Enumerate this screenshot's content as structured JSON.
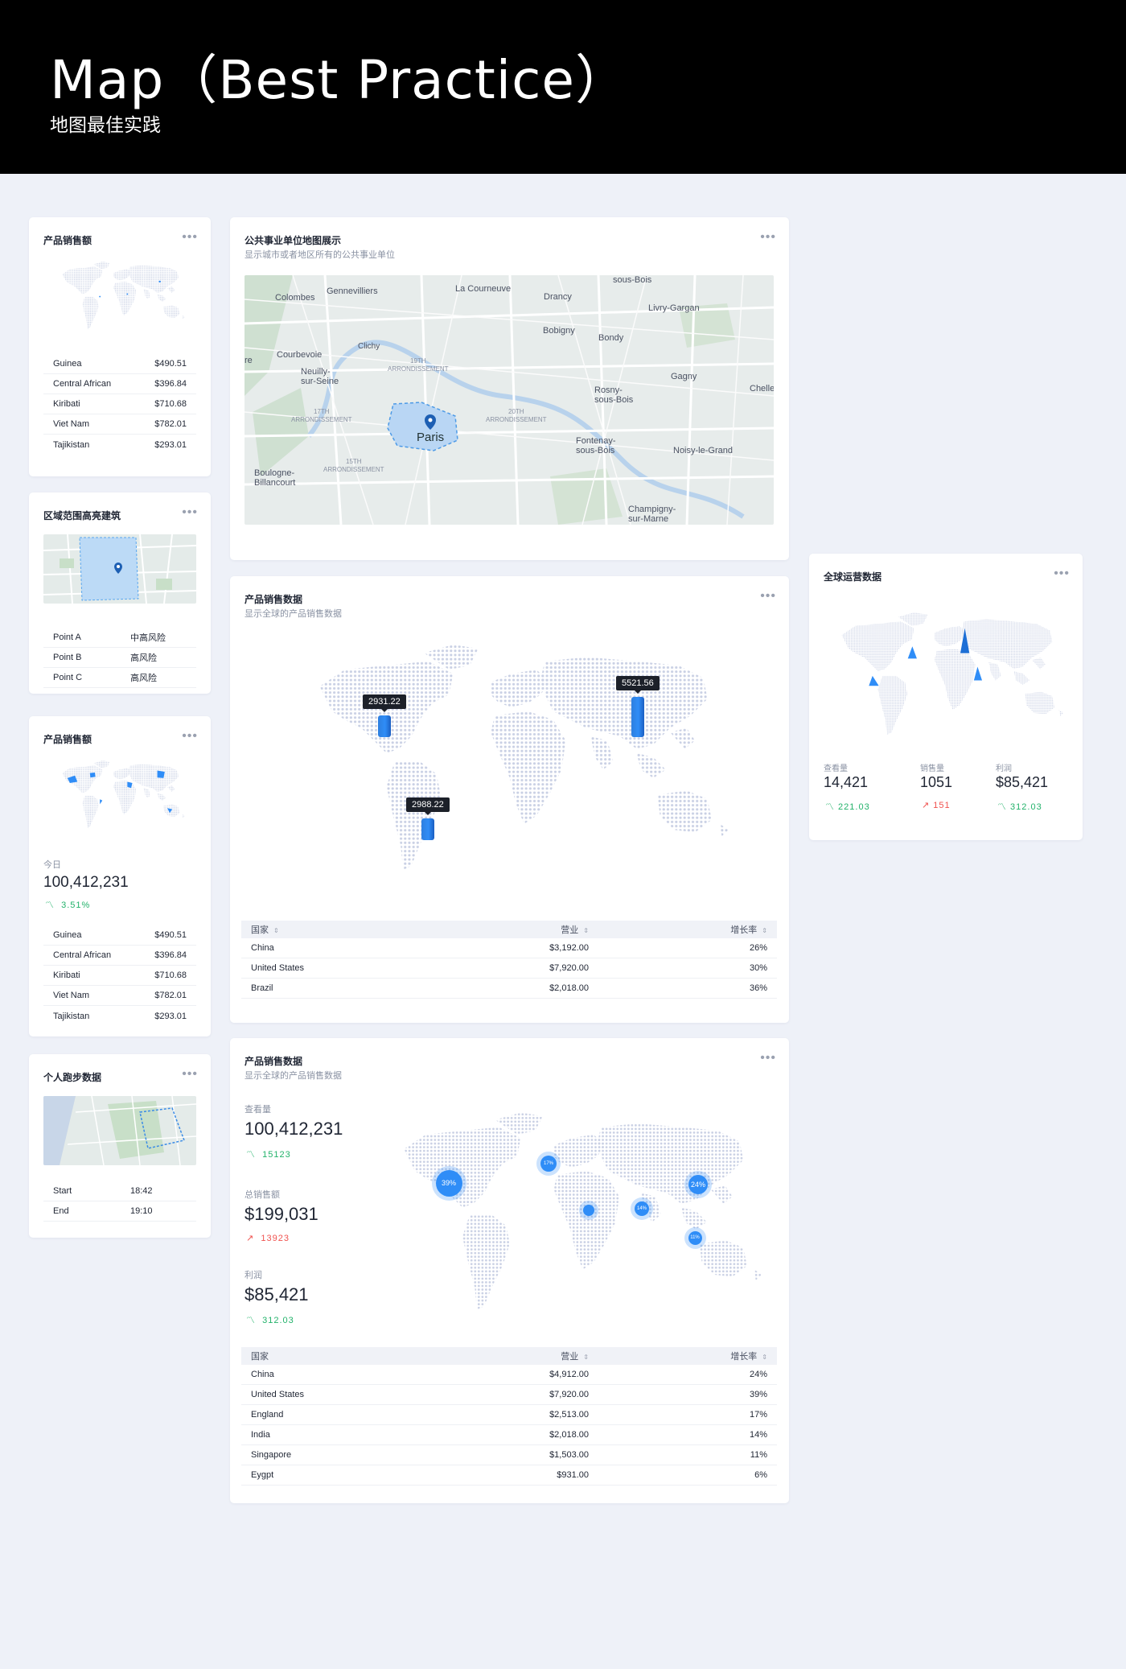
{
  "header": {
    "title": "Map（Best Practice）",
    "subtitle": "地图最佳实践"
  },
  "more_label": "•••",
  "colors": {
    "accent": "#2f8df7",
    "up": "#f0524f",
    "down": "#22b26a",
    "background": "#eef1f8"
  },
  "card_sales_1": {
    "title": "产品销售额",
    "rows": [
      {
        "k": "Guinea",
        "v": "$490.51"
      },
      {
        "k": "Central African",
        "v": "$396.84"
      },
      {
        "k": "Kiribati",
        "v": "$710.68"
      },
      {
        "k": "Viet Nam",
        "v": "$782.01"
      },
      {
        "k": "Tajikistan",
        "v": "$293.01"
      }
    ]
  },
  "card_region": {
    "title": "区域范围高亮建筑",
    "rows": [
      {
        "k": "Point A",
        "v": "中高风险"
      },
      {
        "k": "Point B",
        "v": "高风险"
      },
      {
        "k": "Point C",
        "v": "高风险"
      }
    ]
  },
  "card_sales_2": {
    "title": "产品销售额",
    "stat_label": "今日",
    "stat_value": "100,412,231",
    "stat_delta": "3.51%",
    "rows": [
      {
        "k": "Guinea",
        "v": "$490.51"
      },
      {
        "k": "Central African",
        "v": "$396.84"
      },
      {
        "k": "Kiribati",
        "v": "$710.68"
      },
      {
        "k": "Viet Nam",
        "v": "$782.01"
      },
      {
        "k": "Tajikistan",
        "v": "$293.01"
      }
    ]
  },
  "card_running": {
    "title": "个人跑步数据",
    "rows": [
      {
        "k": "Start",
        "v": "18:42"
      },
      {
        "k": "End",
        "v": "19:10"
      }
    ]
  },
  "card_public": {
    "title": "公共事业单位地图展示",
    "subtitle": "显示城市或者地区所有的公共事业单位",
    "map_labels": {
      "paris": "Paris",
      "gennevilliers": "Gennevilliers",
      "la_courneuve": "La Courneuve",
      "sous_bois": "sous-Bois",
      "colombes": "Colombes",
      "drancy": "Drancy",
      "livry": "Livry-Gargan",
      "bobigny": "Bobigny",
      "bondy": "Bondy",
      "courbevoie": "Courbevoie",
      "clichy": "Clichy",
      "neuilly": "Neuilly-\nsur-Seine",
      "gagny": "Gagny",
      "rosny": "Rosny-\nsous-Bois",
      "chelles": "Chelle",
      "fontenay": "Fontenay-\nsous-Bois",
      "noisy": "Noisy-le-Grand",
      "boulogne": "Boulogne-\nBillancourt",
      "champigny": "Champigny-\nsur-Marne",
      "arr19": "19TH\nARRONDISSEMENT",
      "arr17": "17TH\nARRONDISSEMENT",
      "arr20": "20TH\nARRONDISSEMENT",
      "arr15": "15TH\nARRONDISSEMENT",
      "re": "re"
    }
  },
  "card_product_1": {
    "title": "产品销售数据",
    "subtitle": "显示全球的产品销售数据",
    "markers": [
      {
        "label": "2931.22",
        "value": 2931.22
      },
      {
        "label": "5521.56",
        "value": 5521.56
      },
      {
        "label": "2988.22",
        "value": 2988.22
      }
    ],
    "columns": [
      "国家",
      "营业",
      "增长率"
    ],
    "rows": [
      {
        "country": "China",
        "revenue": "$3,192.00",
        "growth": "26%"
      },
      {
        "country": "United States",
        "revenue": "$7,920.00",
        "growth": "30%"
      },
      {
        "country": "Brazil",
        "revenue": "$2,018.00",
        "growth": "36%"
      }
    ]
  },
  "card_product_2": {
    "title": "产品销售数据",
    "subtitle": "显示全球的产品销售数据",
    "stats": [
      {
        "label": "查看量",
        "value": "100,412,231",
        "delta": "15123",
        "dir": "down"
      },
      {
        "label": "总销售额",
        "value": "$199,031",
        "delta": "13923",
        "dir": "up"
      },
      {
        "label": "利润",
        "value": "$85,421",
        "delta": "312.03",
        "dir": "down"
      }
    ],
    "bubbles": [
      {
        "label": "39%",
        "value": 39
      },
      {
        "label": "17%",
        "value": 17
      },
      {
        "label": "24%",
        "value": 24
      },
      {
        "label": "14%",
        "value": 14
      },
      {
        "label": "11%",
        "value": 11
      },
      {
        "label": "",
        "value": 6
      }
    ],
    "columns": [
      "国家",
      "营业",
      "增长率"
    ],
    "rows": [
      {
        "country": "China",
        "revenue": "$4,912.00",
        "growth": "24%"
      },
      {
        "country": "United States",
        "revenue": "$7,920.00",
        "growth": "39%"
      },
      {
        "country": "England",
        "revenue": "$2,513.00",
        "growth": "17%"
      },
      {
        "country": "India",
        "revenue": "$2,018.00",
        "growth": "14%"
      },
      {
        "country": "Singapore",
        "revenue": "$1,503.00",
        "growth": "11%"
      },
      {
        "country": "Eygpt",
        "revenue": "$931.00",
        "growth": "6%"
      }
    ]
  },
  "card_global": {
    "title": "全球运营数据",
    "stats": [
      {
        "label": "查看量",
        "value": "14,421",
        "delta": "221.03",
        "dir": "down"
      },
      {
        "label": "销售量",
        "value": "1051",
        "delta": "151",
        "dir": "up"
      },
      {
        "label": "利润",
        "value": "$85,421",
        "delta": "312.03",
        "dir": "down"
      }
    ]
  }
}
